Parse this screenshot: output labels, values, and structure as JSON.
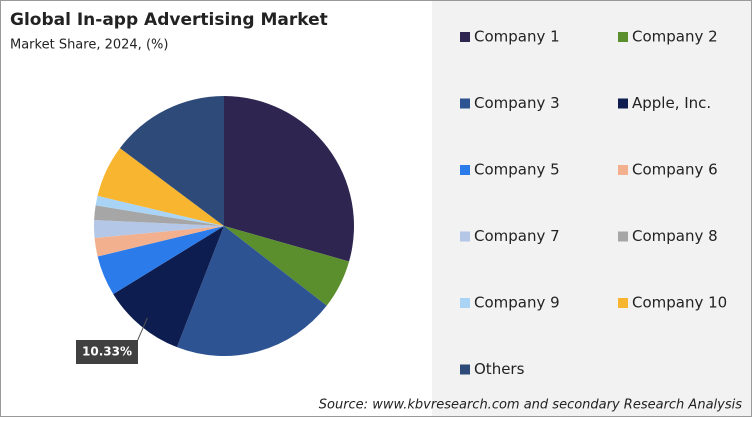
{
  "chart_data": {
    "type": "pie",
    "title": "Global In-app Advertising Market",
    "subtitle": "Market Share, 2024, (%)",
    "categories": [
      "Company 1",
      "Company 2",
      "Company 3",
      "Apple, Inc.",
      "Company 5",
      "Company 6",
      "Company 7",
      "Company 8",
      "Company 9",
      "Company 10",
      "Others"
    ],
    "values": [
      29.4,
      6.1,
      20.4,
      10.33,
      5.0,
      2.3,
      2.2,
      1.8,
      1.2,
      6.5,
      14.77
    ],
    "value_labels": [
      null,
      null,
      null,
      "10.33%",
      null,
      null,
      null,
      null,
      null,
      null,
      null
    ],
    "colors": [
      "#2e2650",
      "#5b8f2d",
      "#2e5393",
      "#0d1d4f",
      "#2b7bea",
      "#f2b08f",
      "#b4c7e7",
      "#a6a6a6",
      "#a9d4f5",
      "#f8b52f",
      "#2e4a78"
    ],
    "source": "Source: www.kbvresearch.com and secondary Research Analysis"
  }
}
